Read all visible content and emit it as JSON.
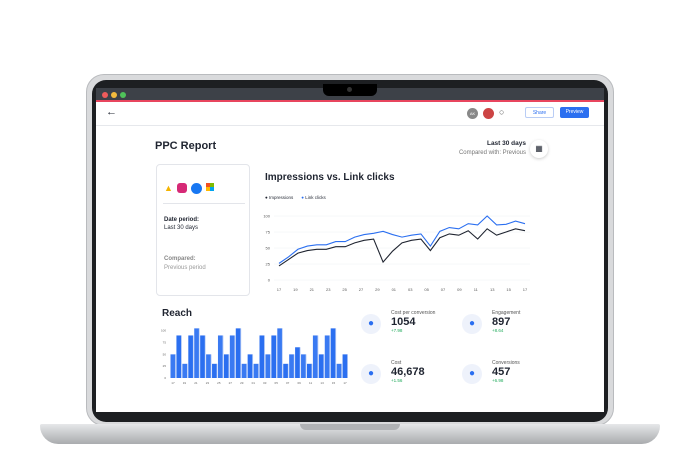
{
  "header": {
    "avatar_initials": "AK",
    "share_label": "Share",
    "preview_label": "Preview"
  },
  "report": {
    "title": "PPC Report",
    "date_range": "Last 30 days",
    "compared_with": "Compared with: Previous"
  },
  "sources": {
    "icons": [
      "google-ads-icon",
      "instagram-icon",
      "facebook-icon",
      "microsoft-icon"
    ],
    "date_period_label": "Date period:",
    "date_period_value": "Last 30 days",
    "compared_label": "Compared:",
    "compared_value": "Previous period"
  },
  "colors": {
    "accent": "#2b6ff0",
    "impressions": "#1f2430",
    "link_clicks": "#2b6ff0",
    "positive": "#1faa5a",
    "window_accent": "#e8455e"
  },
  "chart_data": [
    {
      "type": "line",
      "title": "Impressions vs. Link clicks",
      "ylim": [
        0,
        100
      ],
      "yticks": [
        "0",
        "25",
        "50",
        "75",
        "100"
      ],
      "xticks": [
        "17",
        "19",
        "21",
        "23",
        "25",
        "27",
        "29",
        "01",
        "03",
        "05",
        "07",
        "09",
        "11",
        "13",
        "15",
        "17"
      ],
      "legend": "top-left",
      "series": [
        {
          "name": "Impressions",
          "values": [
            22,
            32,
            42,
            46,
            48,
            48,
            52,
            52,
            58,
            62,
            64,
            28,
            45,
            58,
            62,
            64,
            46,
            66,
            72,
            70,
            77,
            64,
            80,
            70,
            75,
            80,
            77
          ]
        },
        {
          "name": "Link clicks",
          "values": [
            26,
            36,
            48,
            53,
            55,
            55,
            60,
            60,
            67,
            71,
            73,
            76,
            71,
            67,
            70,
            72,
            53,
            76,
            82,
            80,
            88,
            86,
            100,
            86,
            87,
            92,
            88
          ]
        }
      ]
    },
    {
      "type": "bar",
      "title": "Reach",
      "ylim": [
        0,
        110
      ],
      "yticks": [
        "0",
        "25",
        "50",
        "75",
        "100"
      ],
      "xticks": [
        "17",
        "19",
        "21",
        "23",
        "25",
        "27",
        "29",
        "01",
        "03",
        "05",
        "07",
        "09",
        "11",
        "13",
        "15",
        "17"
      ],
      "values": [
        50,
        90,
        30,
        90,
        105,
        90,
        50,
        30,
        90,
        50,
        90,
        105,
        30,
        50,
        30,
        90,
        50,
        90,
        105,
        30,
        50,
        65,
        50,
        30,
        90,
        50,
        90,
        105,
        30,
        50
      ]
    }
  ],
  "kpis": [
    {
      "label": "Cost per conversion",
      "value": "1054",
      "change": "+7.98",
      "icon": "person-coins-icon"
    },
    {
      "label": "Engagement",
      "value": "897",
      "change": "+8.64",
      "icon": "browser-engagement-icon"
    },
    {
      "label": "Cost",
      "value": "46,678",
      "change": "+1.56",
      "icon": "coins-stack-icon"
    },
    {
      "label": "Conversions",
      "value": "457",
      "change": "+6.98",
      "icon": "person-icon"
    }
  ]
}
